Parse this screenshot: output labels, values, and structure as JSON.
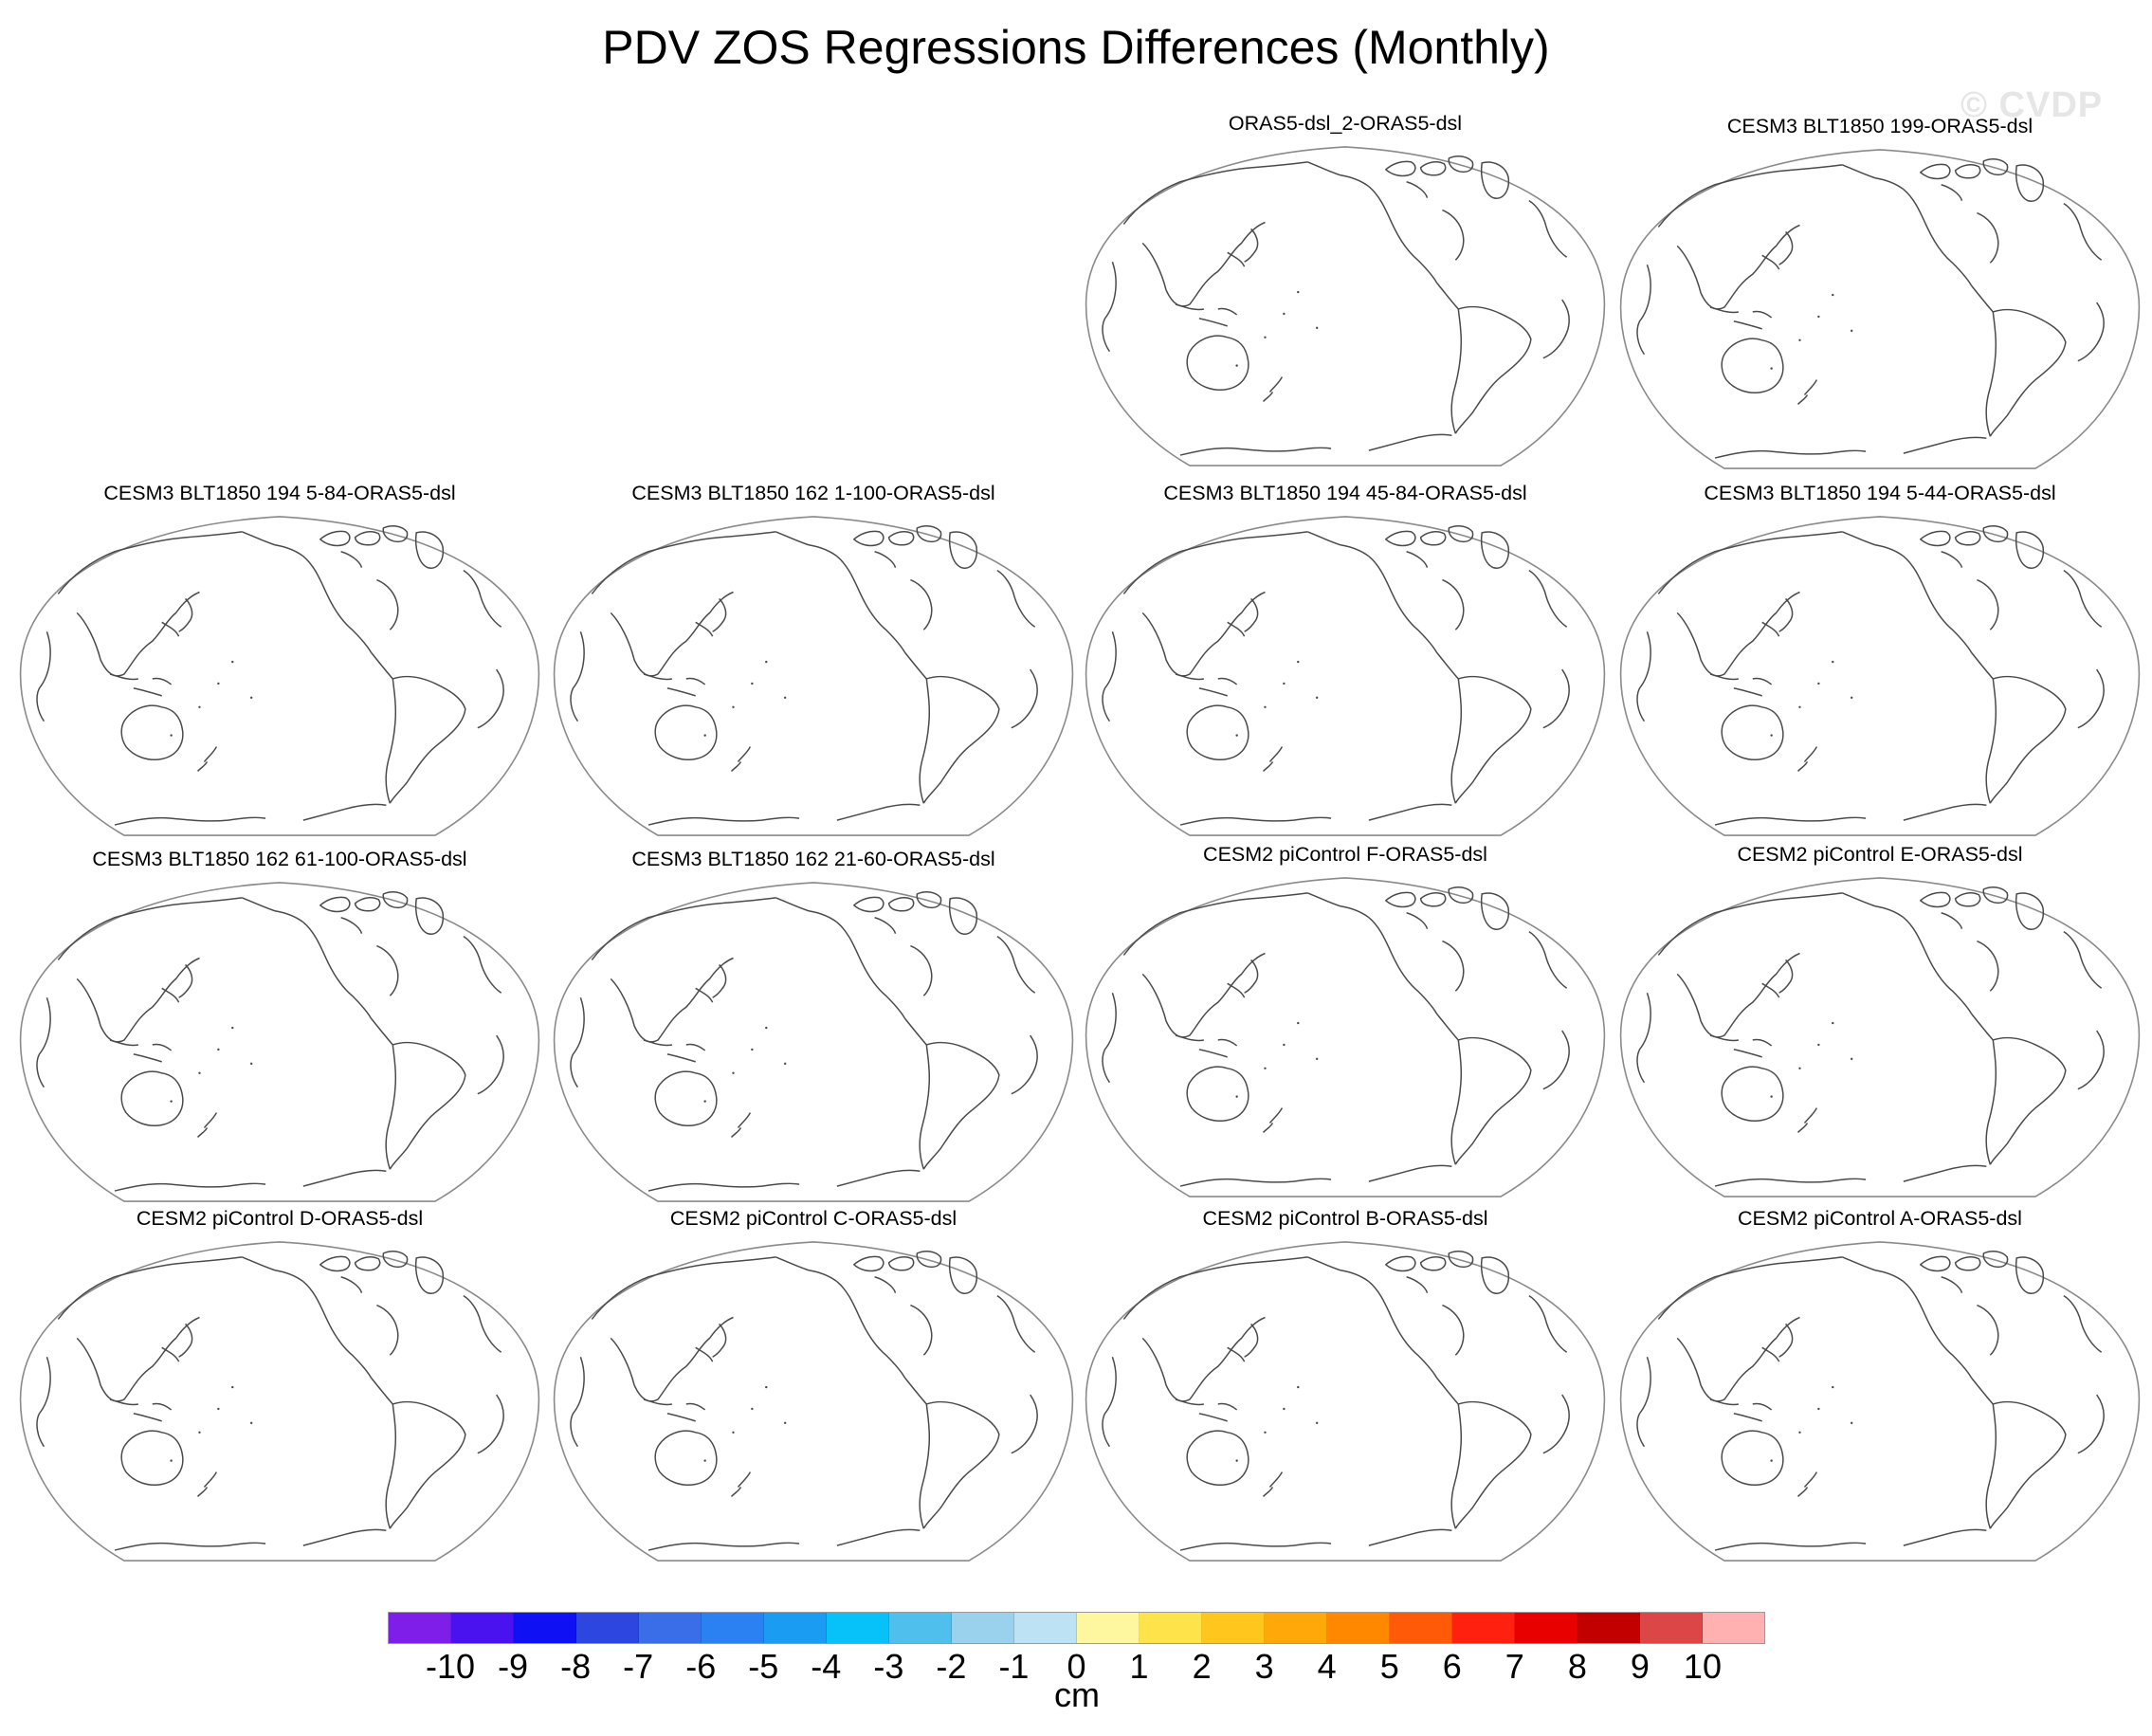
{
  "title": "PDV ZOS Regressions Differences (Monthly)",
  "watermark": "© CVDP",
  "panels": [
    {
      "title": "ORAS5-dsl_2-ORAS5-dsl"
    },
    {
      "title": "CESM3 BLT1850 199-ORAS5-dsl"
    },
    {
      "title": "CESM3 BLT1850 194 5-84-ORAS5-dsl"
    },
    {
      "title": "CESM3 BLT1850 162 1-100-ORAS5-dsl"
    },
    {
      "title": "CESM3 BLT1850 194 45-84-ORAS5-dsl"
    },
    {
      "title": "CESM3 BLT1850 194 5-44-ORAS5-dsl"
    },
    {
      "title": "CESM3 BLT1850 162 61-100-ORAS5-dsl"
    },
    {
      "title": "CESM3 BLT1850 162 21-60-ORAS5-dsl"
    },
    {
      "title": "CESM2 piControl F-ORAS5-dsl"
    },
    {
      "title": "CESM2 piControl E-ORAS5-dsl"
    },
    {
      "title": "CESM2 piControl D-ORAS5-dsl"
    },
    {
      "title": "CESM2 piControl C-ORAS5-dsl"
    },
    {
      "title": "CESM2 piControl B-ORAS5-dsl"
    },
    {
      "title": "CESM2 piControl A-ORAS5-dsl"
    }
  ],
  "colorbar": {
    "units": "cm",
    "labels": [
      "-10",
      "-9",
      "-8",
      "-7",
      "-6",
      "-5",
      "-4",
      "-3",
      "-2",
      "-1",
      "0",
      "1",
      "2",
      "3",
      "4",
      "5",
      "6",
      "7",
      "8",
      "9",
      "10"
    ],
    "colors": [
      "#7f1ee8",
      "#4b12f0",
      "#1010f5",
      "#2e46e0",
      "#3a6ee8",
      "#2b80f2",
      "#1a9cf2",
      "#06c2f8",
      "#4fc0ee",
      "#9ad2ee",
      "#bde2f4",
      "#fff6a0",
      "#ffe34a",
      "#ffc61e",
      "#ffa80a",
      "#ff8800",
      "#ff5a08",
      "#ff2010",
      "#e80000",
      "#c20000",
      "#dc4646",
      "#ffb0b0"
    ]
  },
  "map_style": {
    "outline_color": "#8a8a8a",
    "coast_color": "#4a4a4a",
    "fill": "#ffffff"
  }
}
